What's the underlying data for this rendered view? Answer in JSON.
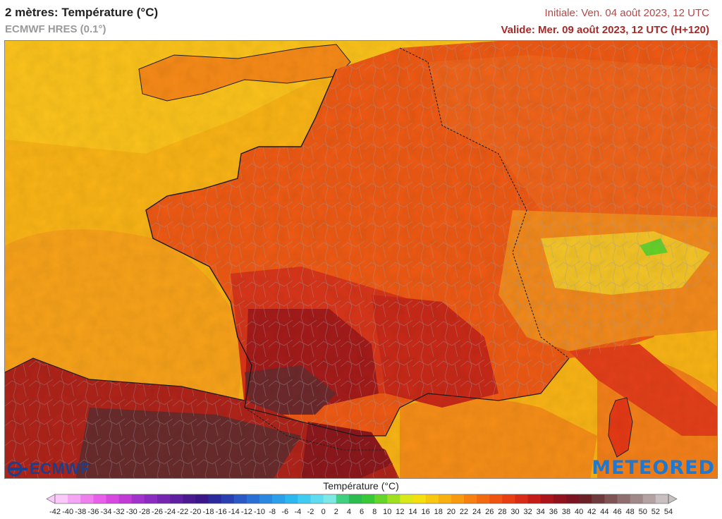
{
  "header": {
    "title": "2 mètres: Température (°C)",
    "model": "ECMWF HRES (0.1°)",
    "initial": "Initiale: Ven. 04 août 2023, 12 UTC",
    "valid": "Valide: Mer. 09 août 2023, 12 UTC (H+120)"
  },
  "logos": {
    "left": "ECMWF",
    "right": "METEORED"
  },
  "legend": {
    "title": "Température (°C)",
    "ticks": [
      "-42",
      "-40",
      "-38",
      "-36",
      "-34",
      "-32",
      "-30",
      "-28",
      "-26",
      "-24",
      "-22",
      "-20",
      "-18",
      "-16",
      "-14",
      "-12",
      "-10",
      "-8",
      "-6",
      "-4",
      "-2",
      "0",
      "2",
      "4",
      "6",
      "8",
      "10",
      "12",
      "14",
      "16",
      "18",
      "20",
      "22",
      "24",
      "26",
      "28",
      "30",
      "32",
      "34",
      "36",
      "38",
      "40",
      "42",
      "44",
      "46",
      "48",
      "50",
      "52",
      "54"
    ],
    "colors": [
      "#fbc8fa",
      "#f4a6f4",
      "#ee80ee",
      "#e860ea",
      "#d648e0",
      "#c03ad6",
      "#a232cc",
      "#8a2cc0",
      "#7426b0",
      "#5e20a0",
      "#4a1a90",
      "#3a1688",
      "#2a2a9a",
      "#2a40b0",
      "#2a58c4",
      "#2a70d4",
      "#2a88e0",
      "#2aa0ea",
      "#2ab8ee",
      "#40ccf0",
      "#60dcf0",
      "#7ee8e4",
      "#40d080",
      "#2cbc50",
      "#38c838",
      "#66d428",
      "#a0e020",
      "#d8e818",
      "#f4e010",
      "#f8c810",
      "#f8b010",
      "#f89a10",
      "#f68010",
      "#f26a10",
      "#ee5412",
      "#e83e14",
      "#d82c16",
      "#c41c18",
      "#aa141a",
      "#90121c",
      "#7a1420",
      "#6a2226",
      "#6e3a3c",
      "#7e5454",
      "#8e6e6e",
      "#a08888",
      "#b4a2a2",
      "#c8c0c0"
    ]
  }
}
